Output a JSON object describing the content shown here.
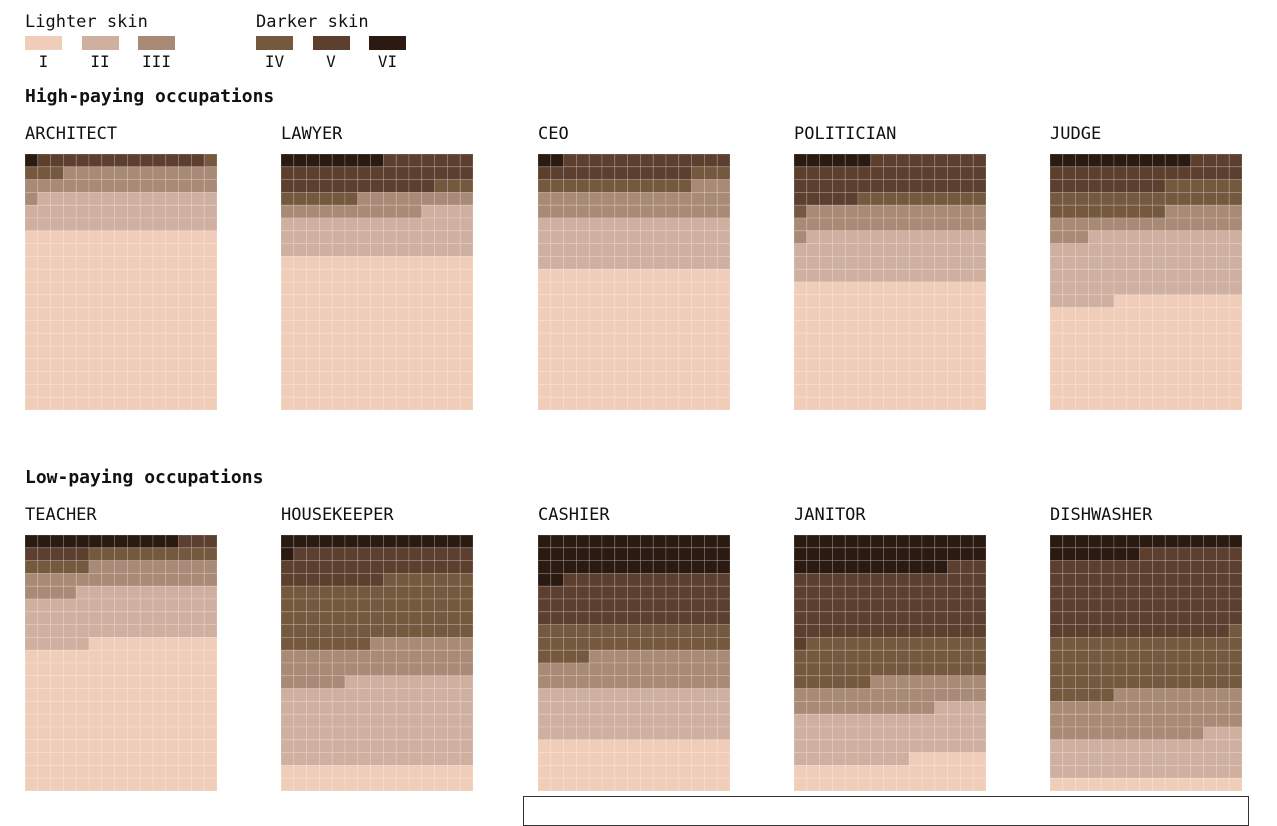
{
  "legend": {
    "lighter_title": "Lighter skin",
    "darker_title": "Darker skin",
    "lighter": [
      {
        "label": "I",
        "color": "#f0cdb9"
      },
      {
        "label": "II",
        "color": "#cfafa0"
      },
      {
        "label": "III",
        "color": "#a98a76"
      }
    ],
    "darker": [
      {
        "label": "IV",
        "color": "#74593e"
      },
      {
        "label": "V",
        "color": "#5c3f2f"
      },
      {
        "label": "VI",
        "color": "#2b1a12"
      }
    ]
  },
  "sections": {
    "high_title": "High-paying occupations",
    "low_title": "Low-paying occupations"
  },
  "chart_data": {
    "type": "waffle",
    "grid": {
      "columns": 15,
      "rows": 20,
      "unit": "cells of 300, filled top-down from type VI"
    },
    "skin_types": [
      "I",
      "II",
      "III",
      "IV",
      "V",
      "VI"
    ],
    "occupations": [
      {
        "name": "ARCHITECT",
        "group": "high",
        "counts": [
          210,
          44,
          28,
          4,
          13,
          1
        ]
      },
      {
        "name": "LAWYER",
        "group": "high",
        "counts": [
          180,
          49,
          20,
          9,
          34,
          8
        ]
      },
      {
        "name": "CEO",
        "group": "high",
        "counts": [
          165,
          60,
          33,
          15,
          25,
          2
        ]
      },
      {
        "name": "POLITICIAN",
        "group": "high",
        "counts": [
          150,
          59,
          30,
          11,
          44,
          6
        ]
      },
      {
        "name": "JUDGE",
        "group": "high",
        "counts": [
          130,
          77,
          24,
          30,
          28,
          11
        ]
      },
      {
        "name": "TEACHER",
        "group": "low",
        "counts": [
          175,
          61,
          29,
          15,
          8,
          12
        ]
      },
      {
        "name": "HOUSEKEEPER",
        "group": "low",
        "counts": [
          30,
          100,
          43,
          74,
          37,
          16
        ]
      },
      {
        "name": "CASHIER",
        "group": "low",
        "counts": [
          60,
          60,
          41,
          34,
          58,
          47
        ]
      },
      {
        "name": "JANITOR",
        "group": "low",
        "counts": [
          36,
          58,
          35,
          50,
          79,
          42
        ]
      },
      {
        "name": "DISHWASHER",
        "group": "low",
        "counts": [
          15,
          48,
          52,
          66,
          97,
          22
        ]
      }
    ]
  }
}
